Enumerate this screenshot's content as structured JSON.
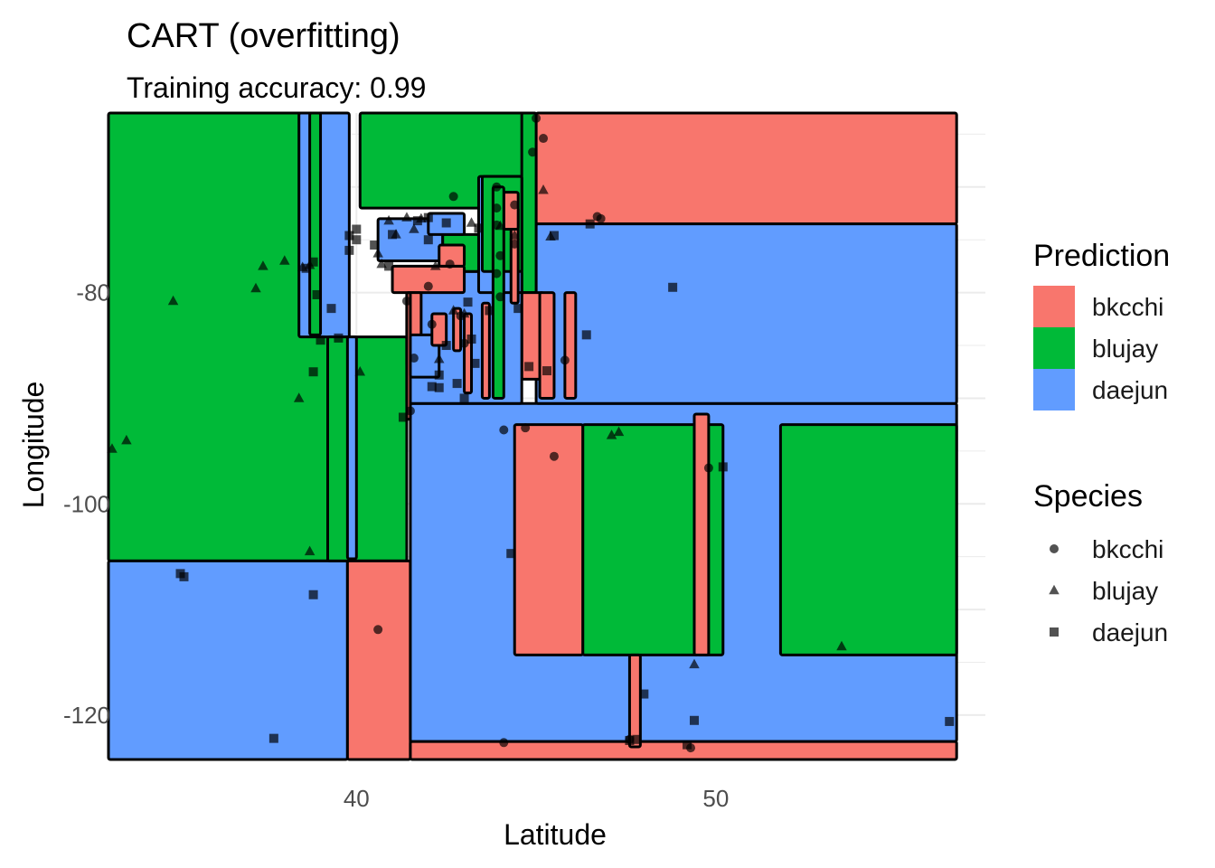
{
  "chart_data": {
    "type": "scatter",
    "title": "CART (overfitting)",
    "subtitle": "Training accuracy: 0.99",
    "xlabel": "Latitude",
    "ylabel": "Longitude",
    "xlim": [
      33.1,
      57.5
    ],
    "ylim": [
      -124.2,
      -63.0
    ],
    "x_ticks": [
      40,
      50
    ],
    "y_ticks": [
      -80,
      -100,
      -120
    ],
    "grid": true,
    "legend_placement": "right",
    "prediction_legend": {
      "title": "Prediction",
      "entries": [
        {
          "label": "bkcchi",
          "color": "#F8766D"
        },
        {
          "label": "blujay",
          "color": "#00BA38"
        },
        {
          "label": "daejun",
          "color": "#619CFF"
        }
      ]
    },
    "species_legend": {
      "title": "Species",
      "entries": [
        {
          "label": "bkcchi",
          "shape": "circle"
        },
        {
          "label": "blujay",
          "shape": "triangle"
        },
        {
          "label": "daejun",
          "shape": "square"
        }
      ]
    },
    "regions": [
      {
        "class": "blujay",
        "x": [
          33.1,
          39.75
        ],
        "y": [
          -105.4,
          -63.0
        ]
      },
      {
        "class": "daejun",
        "x": [
          33.1,
          39.75
        ],
        "y": [
          -124.2,
          -105.4
        ]
      },
      {
        "class": "daejun",
        "x": [
          38.4,
          39.8
        ],
        "y": [
          -84.2,
          -63.0
        ]
      },
      {
        "class": "blujay",
        "x": [
          38.7,
          39.0
        ],
        "y": [
          -84.0,
          -63.0
        ]
      },
      {
        "class": "blujay",
        "x": [
          39.2,
          41.4
        ],
        "y": [
          -105.4,
          -84.2
        ]
      },
      {
        "class": "daejun",
        "x": [
          39.75,
          40.0
        ],
        "y": [
          -105.2,
          -84.2
        ]
      },
      {
        "class": "blujay",
        "x": [
          40.1,
          45.0
        ],
        "y": [
          -72.0,
          -63.0
        ]
      },
      {
        "class": "bkcchi",
        "x": [
          39.75,
          41.5
        ],
        "y": [
          -124.2,
          -105.4
        ]
      },
      {
        "class": "daejun",
        "x": [
          41.5,
          56.7
        ],
        "y": [
          -122.5,
          -90.5
        ]
      },
      {
        "class": "bkcchi",
        "x": [
          41.5,
          56.7
        ],
        "y": [
          -124.2,
          -122.5
        ]
      },
      {
        "class": "bkcchi",
        "x": [
          45.0,
          56.7
        ],
        "y": [
          -73.5,
          -63.0
        ]
      },
      {
        "class": "daejun",
        "x": [
          45.0,
          56.7
        ],
        "y": [
          -90.5,
          -73.5
        ]
      },
      {
        "class": "blujay",
        "x": [
          44.6,
          45.0
        ],
        "y": [
          -80.0,
          -63.0
        ]
      },
      {
        "class": "bkcchi",
        "x": [
          44.6,
          45.2
        ],
        "y": [
          -88.2,
          -80.0
        ]
      },
      {
        "class": "daejun",
        "x": [
          41.4,
          44.6
        ],
        "y": [
          -90.5,
          -78.0
        ]
      },
      {
        "class": "daejun",
        "x": [
          43.4,
          44.6
        ],
        "y": [
          -80.0,
          -69.0
        ]
      },
      {
        "class": "blujay",
        "x": [
          43.5,
          44.6
        ],
        "y": [
          -78.0,
          -69.0
        ]
      },
      {
        "class": "daejun",
        "x": [
          40.6,
          42.4
        ],
        "y": [
          -77.0,
          -73.0
        ]
      },
      {
        "class": "blujay",
        "x": [
          42.4,
          43.4
        ],
        "y": [
          -78.0,
          -74.5
        ]
      },
      {
        "class": "daejun",
        "x": [
          42.0,
          43.0
        ],
        "y": [
          -74.5,
          -72.5
        ]
      },
      {
        "class": "bkcchi",
        "x": [
          41.0,
          43.0
        ],
        "y": [
          -80.0,
          -77.5
        ]
      },
      {
        "class": "bkcchi",
        "x": [
          42.3,
          43.0
        ],
        "y": [
          -77.5,
          -75.5
        ]
      },
      {
        "class": "bkcchi",
        "x": [
          41.4,
          41.8
        ],
        "y": [
          -87.0,
          -80.0
        ]
      },
      {
        "class": "bkcchi",
        "x": [
          41.4,
          41.5
        ],
        "y": [
          -92.0,
          -80.0
        ]
      },
      {
        "class": "daejun",
        "x": [
          41.5,
          42.3
        ],
        "y": [
          -88.0,
          -84.0
        ]
      },
      {
        "class": "bkcchi",
        "x": [
          42.7,
          42.9
        ],
        "y": [
          -85.5,
          -81.5
        ]
      },
      {
        "class": "bkcchi",
        "x": [
          43.0,
          43.2
        ],
        "y": [
          -89.5,
          -82.0
        ]
      },
      {
        "class": "bkcchi",
        "x": [
          43.5,
          43.7
        ],
        "y": [
          -90.0,
          -81.0
        ]
      },
      {
        "class": "bkcchi",
        "x": [
          42.1,
          42.5
        ],
        "y": [
          -85.0,
          -82.0
        ]
      },
      {
        "class": "bkcchi",
        "x": [
          44.3,
          44.5
        ],
        "y": [
          -81.0,
          -72.0
        ]
      },
      {
        "class": "bkcchi",
        "x": [
          44.1,
          44.5
        ],
        "y": [
          -74.0,
          -70.5
        ]
      },
      {
        "class": "bkcchi",
        "x": [
          45.1,
          45.5
        ],
        "y": [
          -90.0,
          -80.0
        ]
      },
      {
        "class": "bkcchi",
        "x": [
          45.8,
          46.1
        ],
        "y": [
          -90.0,
          -80.0
        ]
      },
      {
        "class": "bkcchi",
        "x": [
          44.4,
          46.3
        ],
        "y": [
          -114.3,
          -92.5
        ]
      },
      {
        "class": "blujay",
        "x": [
          46.3,
          49.5
        ],
        "y": [
          -114.3,
          -92.5
        ]
      },
      {
        "class": "blujay",
        "x": [
          49.5,
          50.2
        ],
        "y": [
          -114.3,
          -92.5
        ]
      },
      {
        "class": "blujay",
        "x": [
          51.8,
          56.7
        ],
        "y": [
          -114.3,
          -92.5
        ]
      },
      {
        "class": "bkcchi",
        "x": [
          49.4,
          49.8
        ],
        "y": [
          -114.3,
          -91.5
        ]
      },
      {
        "class": "bkcchi",
        "x": [
          47.6,
          47.9
        ],
        "y": [
          -123.0,
          -114.3
        ]
      },
      {
        "class": "blujay",
        "x": [
          43.8,
          44.1
        ],
        "y": [
          -90.0,
          -70.0
        ]
      }
    ],
    "series": [
      {
        "name": "bkcchi",
        "points": [
          [
            45.0,
            -63.5
          ],
          [
            45.2,
            -65.4
          ],
          [
            44.9,
            -66.7
          ],
          [
            46.7,
            -72.8
          ],
          [
            46.8,
            -73.0
          ],
          [
            43.9,
            -70.0
          ],
          [
            43.9,
            -72.0
          ],
          [
            44.4,
            -71.7
          ],
          [
            43.9,
            -73.6
          ],
          [
            44.4,
            -75.4
          ],
          [
            44.0,
            -76.5
          ],
          [
            43.9,
            -78.2
          ],
          [
            44.0,
            -80.4
          ],
          [
            42.7,
            -70.9
          ],
          [
            42.6,
            -77.3
          ],
          [
            42.0,
            -79.4
          ],
          [
            42.1,
            -83.0
          ],
          [
            42.9,
            -82.2
          ],
          [
            43.0,
            -84.8
          ],
          [
            41.4,
            -80.8
          ],
          [
            41.6,
            -86.2
          ],
          [
            41.5,
            -91.2
          ],
          [
            45.8,
            -86.4
          ],
          [
            44.7,
            -92.8
          ],
          [
            44.1,
            -93.0
          ],
          [
            45.5,
            -95.5
          ],
          [
            49.8,
            -96.6
          ],
          [
            40.6,
            -111.9
          ],
          [
            44.1,
            -122.6
          ],
          [
            47.6,
            -122.3
          ],
          [
            49.3,
            -123.1
          ]
        ]
      },
      {
        "name": "blujay",
        "points": [
          [
            33.2,
            -94.8
          ],
          [
            33.6,
            -94.0
          ],
          [
            34.9,
            -80.8
          ],
          [
            37.2,
            -79.6
          ],
          [
            37.4,
            -77.5
          ],
          [
            38.0,
            -77.0
          ],
          [
            38.5,
            -77.6
          ],
          [
            38.7,
            -77.4
          ],
          [
            38.7,
            -104.5
          ],
          [
            38.4,
            -90.0
          ],
          [
            40.1,
            -87.5
          ],
          [
            40.6,
            -76.3
          ],
          [
            40.7,
            -77.3
          ],
          [
            40.9,
            -73.2
          ],
          [
            41.1,
            -74.5
          ],
          [
            41.4,
            -72.9
          ],
          [
            41.6,
            -74.0
          ],
          [
            41.8,
            -73.0
          ],
          [
            42.2,
            -77.5
          ],
          [
            42.7,
            -81.7
          ],
          [
            43.2,
            -73.4
          ],
          [
            44.0,
            -73.7
          ],
          [
            44.4,
            -74.6
          ],
          [
            45.2,
            -70.3
          ],
          [
            45.4,
            -74.7
          ],
          [
            42.3,
            -86.3
          ],
          [
            43.0,
            -82.0
          ],
          [
            47.1,
            -93.5
          ],
          [
            47.3,
            -93.2
          ],
          [
            49.4,
            -115.2
          ],
          [
            53.5,
            -113.5
          ]
        ]
      },
      {
        "name": "daejun",
        "points": [
          [
            38.6,
            -77.7
          ],
          [
            38.8,
            -77.1
          ],
          [
            38.9,
            -80.2
          ],
          [
            39.3,
            -81.5
          ],
          [
            39.0,
            -84.5
          ],
          [
            39.5,
            -84.3
          ],
          [
            39.8,
            -74.6
          ],
          [
            40.0,
            -75.0
          ],
          [
            39.8,
            -76.0
          ],
          [
            40.0,
            -74.0
          ],
          [
            41.0,
            -74.5
          ],
          [
            40.5,
            -75.5
          ],
          [
            40.9,
            -77.5
          ],
          [
            41.7,
            -73.2
          ],
          [
            42.0,
            -72.9
          ],
          [
            42.5,
            -73.4
          ],
          [
            42.0,
            -75.0
          ],
          [
            43.4,
            -73.9
          ],
          [
            45.5,
            -74.6
          ],
          [
            46.5,
            -73.5
          ],
          [
            44.5,
            -81.5
          ],
          [
            43.7,
            -81.7
          ],
          [
            43.1,
            -80.9
          ],
          [
            42.5,
            -85.0
          ],
          [
            42.3,
            -87.8
          ],
          [
            42.3,
            -89.0
          ],
          [
            42.8,
            -88.6
          ],
          [
            42.1,
            -88.9
          ],
          [
            43.2,
            -84.4
          ],
          [
            43.3,
            -86.7
          ],
          [
            45.3,
            -87.4
          ],
          [
            44.8,
            -87.0
          ],
          [
            46.4,
            -84.0
          ],
          [
            48.8,
            -79.5
          ],
          [
            38.8,
            -87.5
          ],
          [
            44.3,
            -104.7
          ],
          [
            41.3,
            -91.8
          ],
          [
            43.0,
            -90.0
          ],
          [
            50.2,
            -96.5
          ],
          [
            35.1,
            -106.6
          ],
          [
            35.2,
            -106.9
          ],
          [
            38.8,
            -108.6
          ],
          [
            37.7,
            -122.2
          ],
          [
            47.6,
            -122.4
          ],
          [
            47.8,
            -122.3
          ],
          [
            49.2,
            -122.8
          ],
          [
            49.4,
            -120.5
          ],
          [
            48.0,
            -118.0
          ],
          [
            56.5,
            -120.6
          ]
        ]
      }
    ]
  }
}
